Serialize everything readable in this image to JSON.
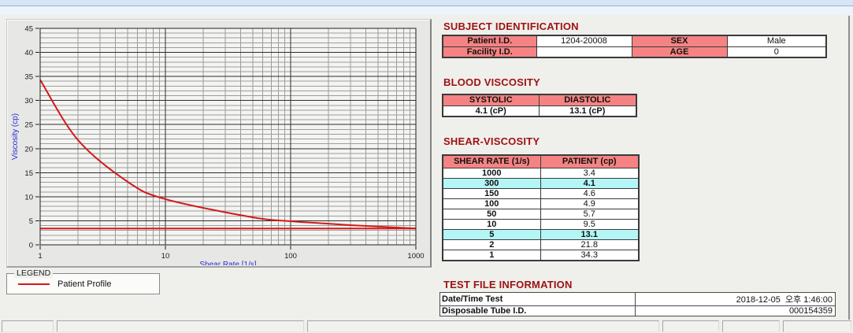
{
  "colors": {
    "pink": "#F58383",
    "cyan": "#B4F6F6",
    "title_red": "#9C1212",
    "curve_red": "#D31919",
    "axis_blue": "#2B2BD4"
  },
  "chart_data": {
    "type": "line",
    "title": "",
    "xlabel": "Shear Rate [1/s]",
    "ylabel": "Viscosity (cp)",
    "x_scale": "log",
    "xlim": [
      1,
      1000
    ],
    "ylim": [
      0,
      45
    ],
    "x_ticks": [
      1,
      10,
      100,
      1000
    ],
    "y_ticks": [
      0,
      5,
      10,
      15,
      20,
      25,
      30,
      35,
      40,
      45
    ],
    "grid": true,
    "series": [
      {
        "name": "Patient Profile",
        "color": "#D31919",
        "x": [
          1,
          2,
          5,
          10,
          50,
          100,
          150,
          300,
          1000
        ],
        "y": [
          34.3,
          21.8,
          13.1,
          9.5,
          5.7,
          4.9,
          4.6,
          4.1,
          3.4
        ]
      }
    ],
    "reference_line": {
      "y": 3.4,
      "color": "#D31919"
    },
    "legend": {
      "title": "LEGEND",
      "position": "below-left",
      "entries": [
        {
          "label": "Patient Profile",
          "color": "#D31919"
        }
      ]
    }
  },
  "subject_identification": {
    "title": "SUBJECT IDENTIFICATION",
    "rows": [
      {
        "label1": "Patient I.D.",
        "value1": "1204-20008",
        "label2": "SEX",
        "value2": "Male"
      },
      {
        "label1": "Facility I.D.",
        "value1": "",
        "label2": "AGE",
        "value2": "0"
      }
    ]
  },
  "blood_viscosity": {
    "title": "BLOOD VISCOSITY",
    "headers": [
      "SYSTOLIC",
      "DIASTOLIC"
    ],
    "values": [
      "4.1 (cP)",
      "13.1 (cP)"
    ]
  },
  "shear_viscosity": {
    "title": "SHEAR-VISCOSITY",
    "headers": [
      "SHEAR RATE (1/s)",
      "PATIENT (cp)"
    ],
    "rows": [
      {
        "rate": "1000",
        "value": "3.4",
        "highlight": false
      },
      {
        "rate": "300",
        "value": "4.1",
        "highlight": true
      },
      {
        "rate": "150",
        "value": "4.6",
        "highlight": false
      },
      {
        "rate": "100",
        "value": "4.9",
        "highlight": false
      },
      {
        "rate": "50",
        "value": "5.7",
        "highlight": false
      },
      {
        "rate": "10",
        "value": "9.5",
        "highlight": false
      },
      {
        "rate": "5",
        "value": "13.1",
        "highlight": true
      },
      {
        "rate": "2",
        "value": "21.8",
        "highlight": false
      },
      {
        "rate": "1",
        "value": "34.3",
        "highlight": false
      }
    ]
  },
  "test_file_information": {
    "title": "TEST FILE INFORMATION",
    "rows": [
      {
        "label": "Date/Time Test",
        "value": "2018-12-05  오후 1:46:00"
      },
      {
        "label": "Disposable Tube I.D.",
        "value": "000154359"
      }
    ]
  }
}
